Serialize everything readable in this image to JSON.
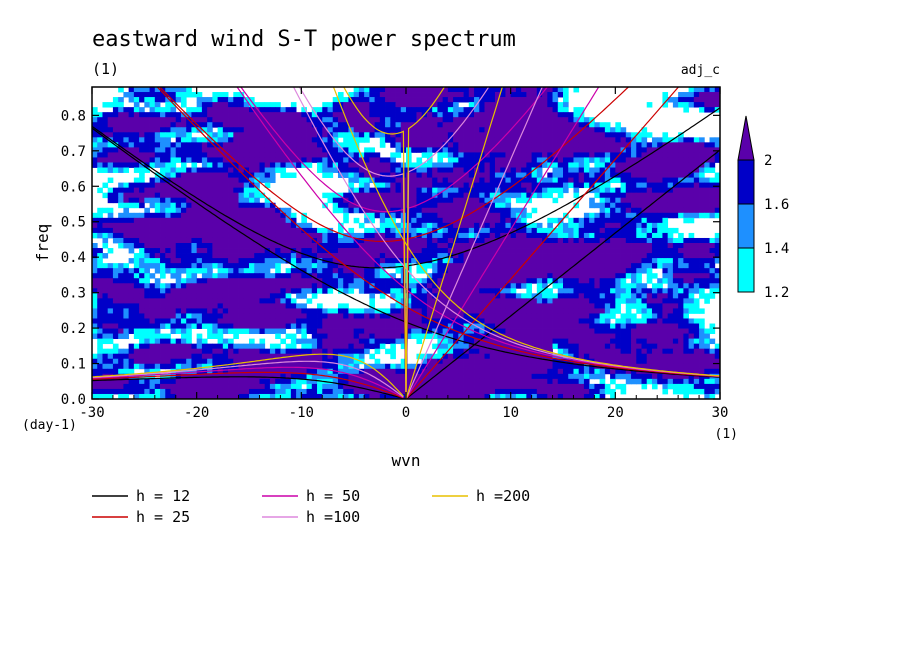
{
  "chart_data": {
    "type": "heatmap",
    "title": "eastward wind S-T power spectrum",
    "subtitle_left": "(1)",
    "subtitle_right": "adj_c",
    "xlabel": "wvn",
    "ylabel": "freq",
    "x_unit": "(1)",
    "y_unit": "(day-1)",
    "xlim": [
      -30,
      30
    ],
    "ylim": [
      0,
      0.88
    ],
    "x_ticks": [
      -30,
      -20,
      -10,
      0,
      10,
      20,
      30
    ],
    "x_tick_labels": [
      "-30",
      "-20",
      "-10",
      "0",
      "10",
      "20",
      "30"
    ],
    "y_ticks": [
      0.0,
      0.1,
      0.2,
      0.3,
      0.4,
      0.5,
      0.6,
      0.7,
      0.8
    ],
    "y_tick_labels": [
      "0.0",
      "0.1",
      "0.2",
      "0.3",
      "0.4",
      "0.5",
      "0.6",
      "0.7",
      "0.8"
    ],
    "colorbar": {
      "levels": [
        1.2,
        1.4,
        1.6,
        2
      ],
      "level_labels": [
        "1.2",
        "1.4",
        "1.6",
        "2"
      ],
      "colors": [
        "#00ffff",
        "#1e90ff",
        "#0000c8",
        "#5a00aa"
      ],
      "extend_max": true
    },
    "series": [
      {
        "name": "h = 12",
        "h": 12,
        "color": "#000000"
      },
      {
        "name": "h = 25",
        "h": 25,
        "color": "#cc0000"
      },
      {
        "name": "h = 50",
        "h": 50,
        "color": "#cc00aa"
      },
      {
        "name": "h =100",
        "h": 100,
        "color": "#dd88dd"
      },
      {
        "name": "h =200",
        "h": 200,
        "color": "#e8c000"
      }
    ]
  }
}
